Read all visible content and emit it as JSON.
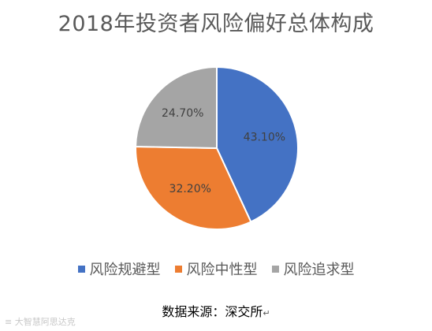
{
  "chart_data": {
    "type": "pie",
    "title": "2018年投资者风险偏好总体构成",
    "categories": [
      "风险规避型",
      "风险中性型",
      "风险追求型"
    ],
    "values": [
      43.1,
      32.2,
      24.7
    ],
    "value_labels": [
      "43.10%",
      "32.20%",
      "24.70%"
    ],
    "colors": [
      "#4472C4",
      "#ED7D31",
      "#A5A5A5"
    ],
    "legend_position": "bottom"
  },
  "source": "数据来源：深交所",
  "source_mark": "↵",
  "watermark": "≡ 大智慧阿思达克"
}
